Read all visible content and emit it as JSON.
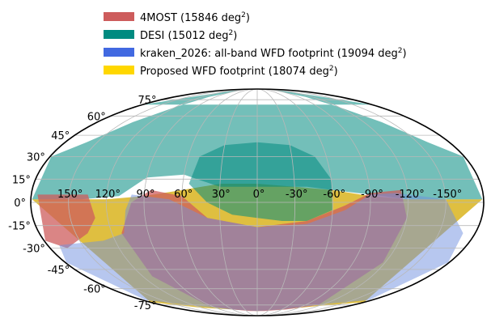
{
  "chart_data": {
    "type": "area",
    "projection": "mollweide",
    "grid": true,
    "legend_position": "top",
    "legend": [
      {
        "name": "4MOST",
        "area_deg2": 15846,
        "color": "#cd5c5c"
      },
      {
        "name": "DESI",
        "area_deg2": 15012,
        "color": "#008b80"
      },
      {
        "name": "kraken_2026: all-band WFD footprint",
        "area_deg2": 19094,
        "color": "#4169e1"
      },
      {
        "name": "Proposed WFD footprint",
        "area_deg2": 18074,
        "color": "#ffd700"
      }
    ],
    "legend_unit": "deg",
    "legend_unit_exponent": "2",
    "lon_tick_labels": [
      "150°",
      "120°",
      "90°",
      "60°",
      "30°",
      "0°",
      "-30°",
      "-60°",
      "-90°",
      "-120°",
      "-150°"
    ],
    "lon_ticks": [
      150,
      120,
      90,
      60,
      30,
      0,
      -30,
      -60,
      -90,
      -120,
      -150
    ],
    "lat_tick_labels": [
      "75°",
      "60°",
      "45°",
      "30°",
      "15°",
      "0°",
      "-15°",
      "-30°",
      "-45°",
      "-60°",
      "-75°"
    ],
    "lat_ticks": [
      75,
      60,
      45,
      30,
      15,
      0,
      -15,
      -30,
      -45,
      -60,
      -75
    ],
    "lon_range": [
      -180,
      180
    ],
    "lat_range": [
      -90,
      90
    ],
    "regions": [
      {
        "series": "Proposed WFD footprint",
        "color": "#d4aa00",
        "opacity": 0.75,
        "polygon": [
          [
            179,
            -72
          ],
          [
            120,
            -76
          ],
          [
            60,
            -80
          ],
          [
            0,
            -82
          ],
          [
            -60,
            -80
          ],
          [
            -120,
            -78
          ],
          [
            -179,
            -72
          ],
          [
            -179,
            2
          ],
          [
            -120,
            2
          ],
          [
            -90,
            4
          ],
          [
            -60,
            8
          ],
          [
            -30,
            12
          ],
          [
            0,
            12
          ],
          [
            30,
            10
          ],
          [
            60,
            8
          ],
          [
            90,
            4
          ],
          [
            120,
            2
          ],
          [
            179,
            2
          ]
        ]
      },
      {
        "series": "DESI",
        "color": "#008b80",
        "opacity": 0.55,
        "polygon": [
          [
            179,
            2
          ],
          [
            140,
            2
          ],
          [
            120,
            2
          ],
          [
            100,
            4
          ],
          [
            80,
            6
          ],
          [
            60,
            8
          ],
          [
            40,
            10
          ],
          [
            20,
            10
          ],
          [
            0,
            10
          ],
          [
            -20,
            10
          ],
          [
            -30,
            10
          ],
          [
            -45,
            14
          ],
          [
            -60,
            18
          ],
          [
            -90,
            16
          ],
          [
            -110,
            4
          ],
          [
            -140,
            2
          ],
          [
            -179,
            2
          ],
          [
            -179,
            30
          ],
          [
            -160,
            40
          ],
          [
            -140,
            55
          ],
          [
            -120,
            68
          ],
          [
            -105,
            78
          ],
          [
            -100,
            88
          ],
          [
            -140,
            88
          ],
          [
            -179,
            70
          ],
          [
            179,
            70
          ],
          [
            140,
            88
          ],
          [
            100,
            88
          ],
          [
            105,
            78
          ],
          [
            120,
            68
          ],
          [
            140,
            55
          ],
          [
            160,
            40
          ],
          [
            179,
            30
          ]
        ]
      },
      {
        "series": "DESI",
        "color": "#008b80",
        "opacity": 0.55,
        "polygon": [
          [
            60,
            -5
          ],
          [
            40,
            -12
          ],
          [
            20,
            -12
          ],
          [
            0,
            -10
          ],
          [
            -20,
            -8
          ],
          [
            -40,
            0
          ],
          [
            -55,
            12
          ],
          [
            -50,
            30
          ],
          [
            -30,
            38
          ],
          [
            0,
            40
          ],
          [
            30,
            38
          ],
          [
            50,
            30
          ],
          [
            60,
            15
          ]
        ]
      },
      {
        "series": "4MOST",
        "color": "#cd5c5c",
        "opacity": 0.75,
        "polygon": [
          [
            115,
            -75
          ],
          [
            70,
            -80
          ],
          [
            20,
            -82
          ],
          [
            -20,
            -82
          ],
          [
            -60,
            -80
          ],
          [
            -95,
            -76
          ],
          [
            -110,
            -50
          ],
          [
            -112,
            -20
          ],
          [
            -100,
            0
          ],
          [
            -85,
            8
          ],
          [
            -60,
            4
          ],
          [
            -40,
            -10
          ],
          [
            0,
            -16
          ],
          [
            40,
            -12
          ],
          [
            70,
            -2
          ],
          [
            90,
            6
          ],
          [
            115,
            8
          ],
          [
            120,
            -10
          ],
          [
            118,
            -40
          ]
        ]
      },
      {
        "series": "4MOST",
        "color": "#cd5c5c",
        "opacity": 0.75,
        "polygon": [
          [
            -135,
            5
          ],
          [
            -175,
            5
          ],
          [
            -179,
            -25
          ],
          [
            -165,
            -30
          ],
          [
            -140,
            -20
          ],
          [
            -130,
            -10
          ]
        ]
      },
      {
        "series": "kraken_2026: all-band WFD footprint",
        "color": "#6f8fe0",
        "opacity": 0.5,
        "polygon": [
          [
            175,
            -70
          ],
          [
            120,
            -74
          ],
          [
            60,
            -80
          ],
          [
            0,
            -82
          ],
          [
            -60,
            -80
          ],
          [
            -120,
            -76
          ],
          [
            -175,
            -70
          ],
          [
            -179,
            -40
          ],
          [
            -170,
            -28
          ],
          [
            -130,
            -25
          ],
          [
            -110,
            -20
          ],
          [
            -105,
            -5
          ],
          [
            -100,
            5
          ],
          [
            -70,
            2
          ],
          [
            -40,
            -10
          ],
          [
            0,
            -16
          ],
          [
            40,
            -14
          ],
          [
            70,
            -5
          ],
          [
            90,
            5
          ],
          [
            110,
            6
          ],
          [
            130,
            4
          ],
          [
            150,
            2
          ],
          [
            170,
            -20
          ],
          [
            179,
            -40
          ]
        ]
      }
    ]
  }
}
